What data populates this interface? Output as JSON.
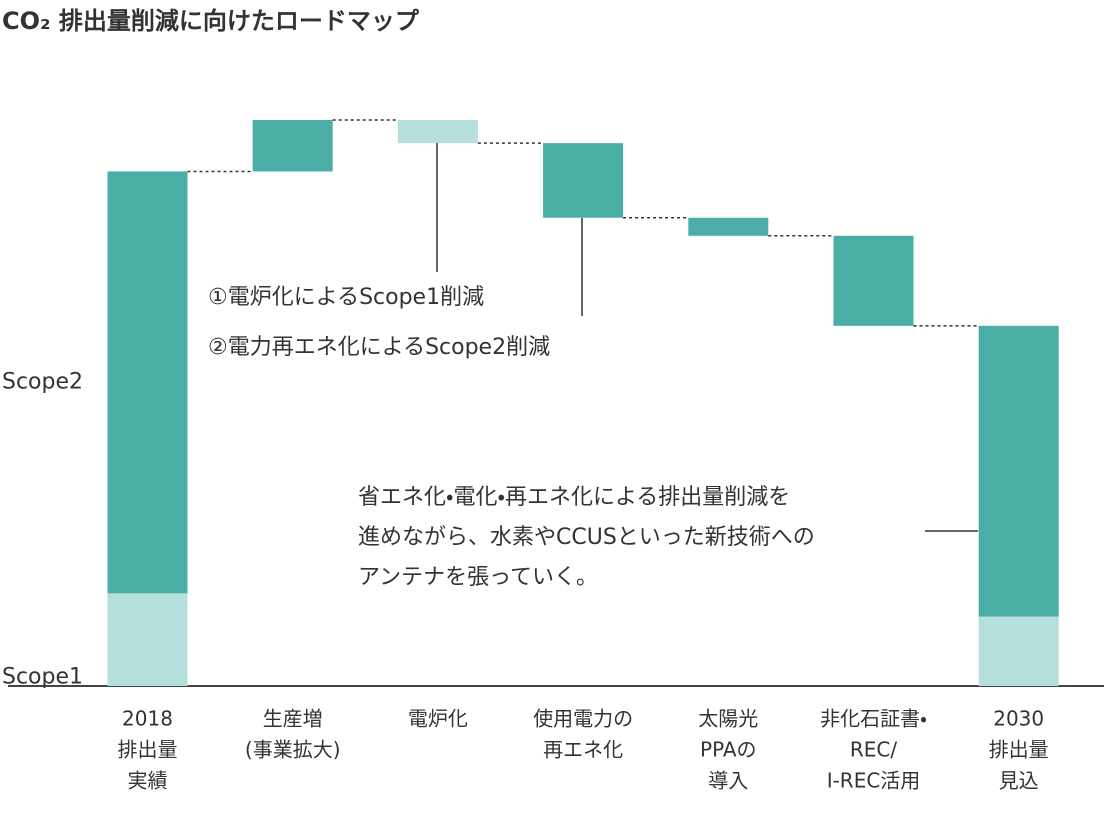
{
  "chart_data": {
    "type": "waterfall",
    "title": "CO₂ 排出量削減に向けたロードマップ",
    "categories": [
      [
        "2018",
        "排出量",
        "実績"
      ],
      [
        "生産増",
        "(事業拡大)"
      ],
      [
        "電炉化"
      ],
      [
        "使用電力の",
        "再エネ化"
      ],
      [
        "太陽光",
        "PPAの",
        "導入"
      ],
      [
        "非化石証書・",
        "REC/",
        "I-REC活用"
      ],
      [
        "2030",
        "排出量",
        "見込"
      ]
    ],
    "is_total": [
      true,
      false,
      false,
      false,
      false,
      false,
      true
    ],
    "series": [
      {
        "name": "Scope1",
        "color": "#b4dfdb",
        "values": [
          18,
          null,
          -4.5,
          null,
          null,
          null,
          13.5
        ]
      },
      {
        "name": "Scope2",
        "color": "#4aada6",
        "values": [
          82,
          10,
          null,
          -14.5,
          -3.5,
          -17.5,
          56.5
        ]
      }
    ],
    "ylim": [
      0,
      110
    ],
    "annotations": [
      "①電炉化によるScope1削減",
      "②電力再エネ化によるScope2削減"
    ],
    "note": [
      "省エネ化・電化・再エネ化による排出量削減を",
      "進めながら、水素やCCUSといった新技術への",
      "アンテナを張っていく。"
    ]
  }
}
